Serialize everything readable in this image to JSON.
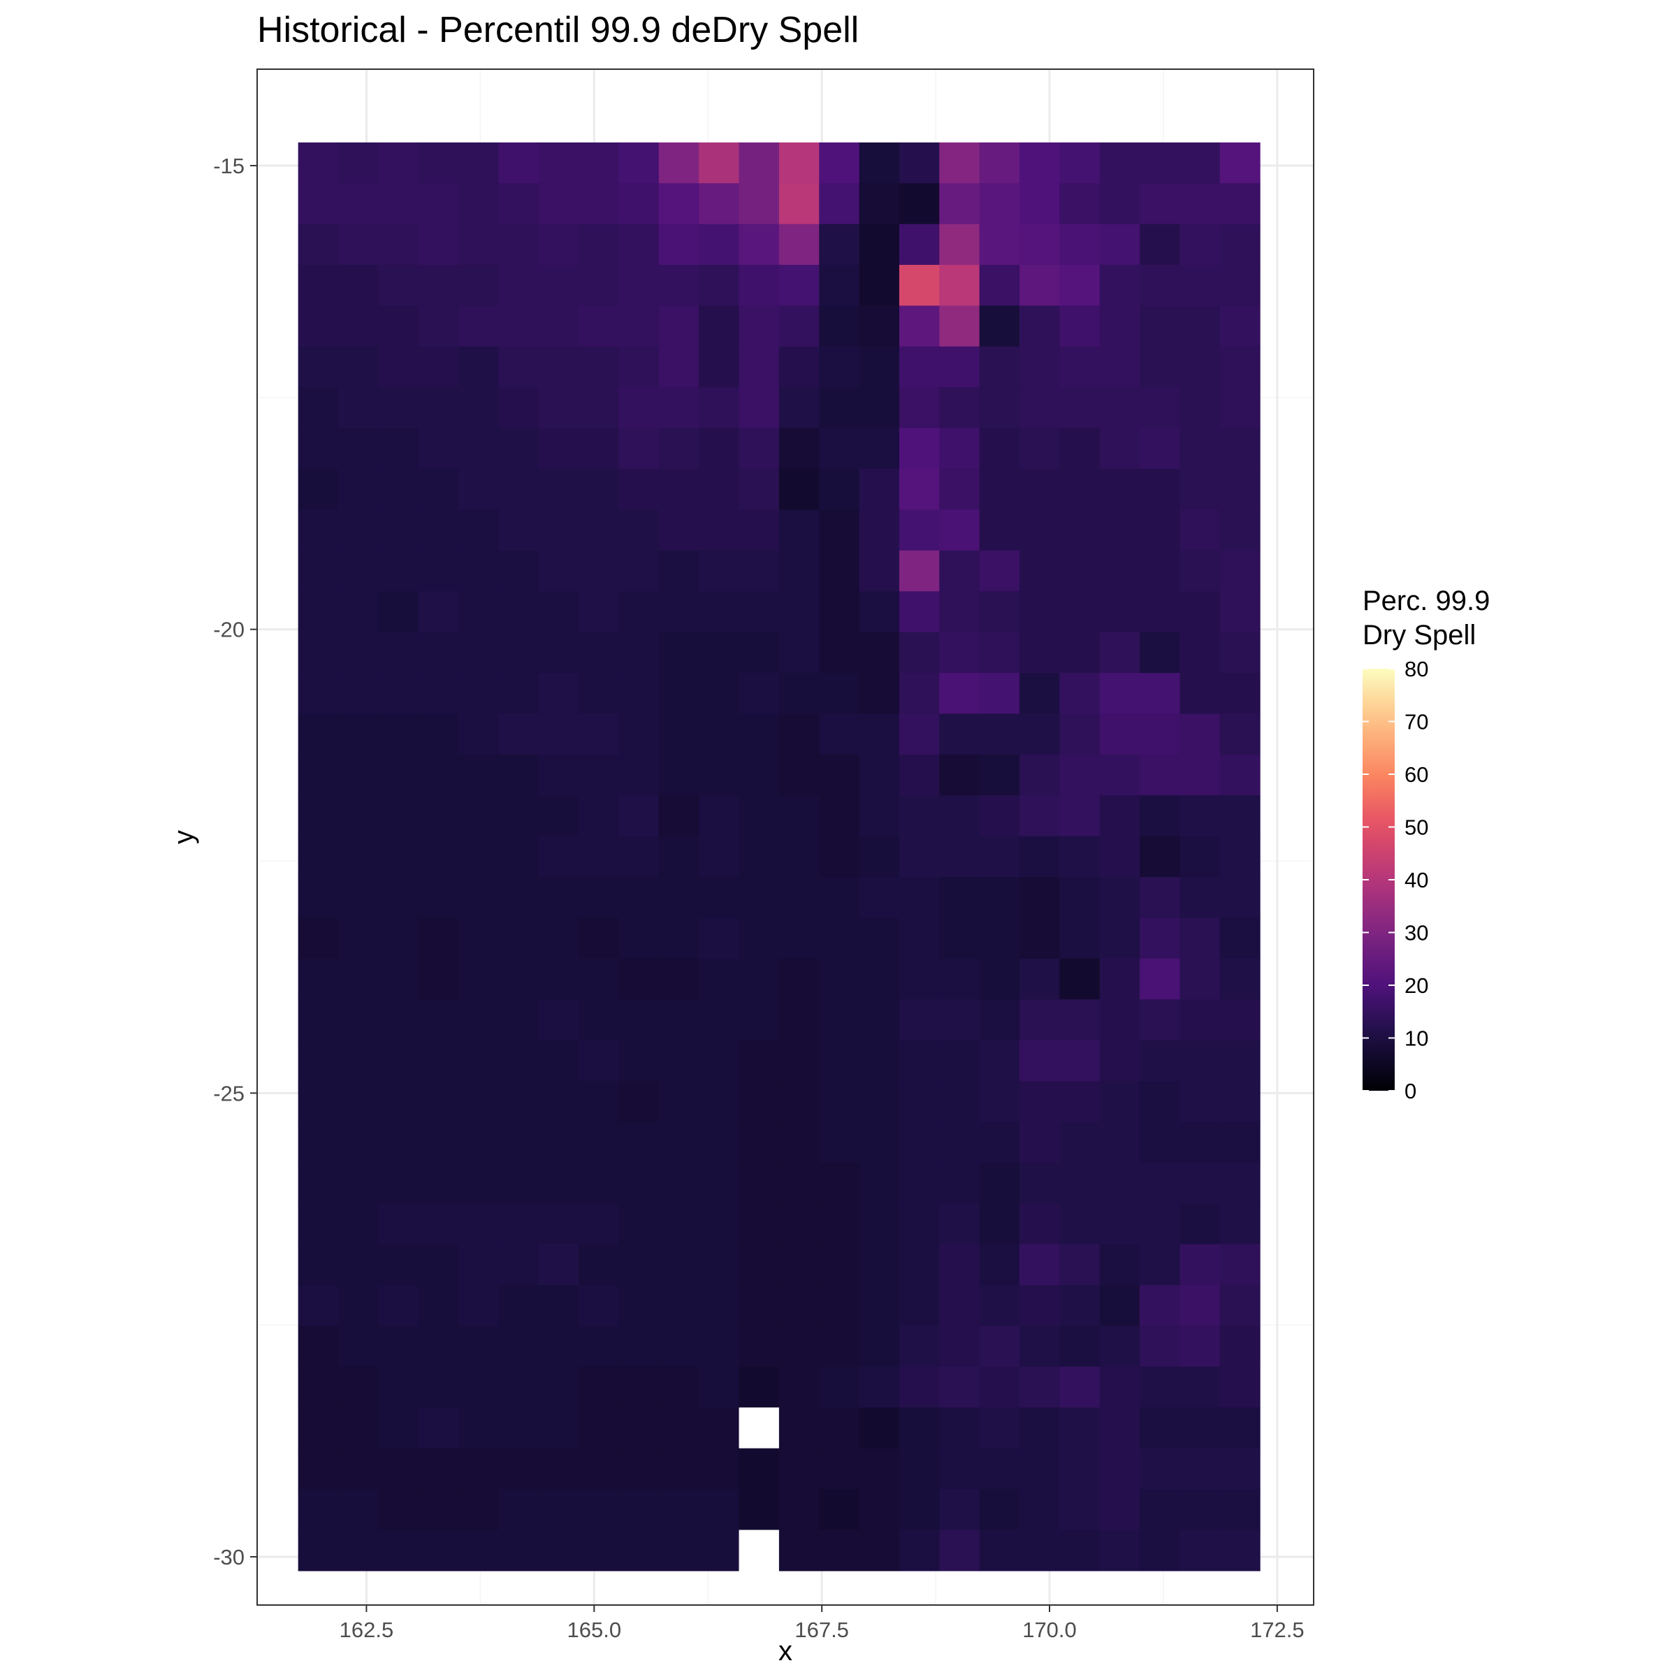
{
  "chart_data": {
    "type": "heatmap",
    "title": "Historical - Percentil 99.9 deDry Spell",
    "xlabel": "x",
    "ylabel": "y",
    "x_ticks": [
      162.5,
      165.0,
      167.5,
      170.0,
      172.5
    ],
    "x_tick_labels": [
      "162.5",
      "165.0",
      "167.5",
      "170.0",
      "172.5"
    ],
    "y_ticks": [
      -15,
      -20,
      -25,
      -30
    ],
    "y_tick_labels": [
      "-15",
      "-20",
      "-25",
      "-30"
    ],
    "xlim": [
      161.3,
      172.9
    ],
    "ylim": [
      -30.52,
      -13.96
    ],
    "x_centers": [
      161.97,
      162.41,
      162.85,
      163.29,
      163.73,
      164.17,
      164.61,
      165.05,
      165.49,
      165.93,
      166.37,
      166.81,
      167.25,
      167.69,
      168.13,
      168.57,
      169.01,
      169.45,
      169.89,
      170.33,
      170.77,
      171.21,
      171.65,
      172.09
    ],
    "y_centers": [
      -14.97,
      -15.41,
      -15.85,
      -16.29,
      -16.73,
      -17.17,
      -17.61,
      -18.05,
      -18.49,
      -18.93,
      -19.37,
      -19.81,
      -20.25,
      -20.69,
      -21.13,
      -21.57,
      -22.01,
      -22.45,
      -22.89,
      -23.33,
      -23.77,
      -24.21,
      -24.65,
      -25.09,
      -25.53,
      -25.97,
      -26.41,
      -26.85,
      -27.29,
      -27.73,
      -28.17,
      -28.61,
      -29.05,
      -29.49,
      -29.93
    ],
    "values": [
      [
        15,
        14,
        15,
        14,
        14,
        17,
        16,
        16,
        18,
        30,
        38,
        28,
        40,
        20,
        9,
        12,
        31,
        25,
        20,
        18,
        15,
        15,
        15,
        21
      ],
      [
        15,
        15,
        15,
        15,
        14,
        15,
        16,
        16,
        17,
        21,
        25,
        28,
        41,
        18,
        8,
        7,
        25,
        22,
        20,
        16,
        15,
        16,
        16,
        16
      ],
      [
        13,
        14,
        14,
        15,
        14,
        14,
        15,
        14,
        15,
        19,
        18,
        22,
        30,
        11,
        7,
        17,
        33,
        22,
        21,
        19,
        18,
        12,
        15,
        14
      ],
      [
        12,
        12,
        13,
        13,
        13,
        14,
        14,
        14,
        15,
        15,
        14,
        17,
        18,
        10,
        7,
        47,
        41,
        16,
        23,
        21,
        15,
        14,
        14,
        14
      ],
      [
        12,
        12,
        12,
        13,
        14,
        14,
        14,
        15,
        15,
        16,
        12,
        16,
        15,
        9,
        8,
        23,
        33,
        9,
        14,
        17,
        15,
        13,
        13,
        15
      ],
      [
        11,
        11,
        12,
        12,
        11,
        13,
        13,
        13,
        14,
        16,
        12,
        16,
        12,
        10,
        9,
        17,
        17,
        13,
        14,
        15,
        15,
        13,
        13,
        14
      ],
      [
        10,
        11,
        11,
        11,
        11,
        12,
        13,
        13,
        15,
        15,
        14,
        16,
        11,
        9,
        9,
        16,
        14,
        13,
        14,
        14,
        14,
        14,
        13,
        14
      ],
      [
        10,
        10,
        10,
        11,
        11,
        11,
        12,
        12,
        14,
        13,
        12,
        14,
        8,
        10,
        10,
        20,
        17,
        12,
        13,
        12,
        14,
        15,
        13,
        13
      ],
      [
        9,
        10,
        10,
        10,
        11,
        11,
        11,
        11,
        12,
        12,
        12,
        13,
        7,
        9,
        12,
        21,
        16,
        12,
        12,
        12,
        12,
        12,
        13,
        13
      ],
      [
        10,
        10,
        10,
        10,
        10,
        11,
        11,
        11,
        11,
        12,
        12,
        12,
        10,
        8,
        12,
        18,
        19,
        12,
        12,
        12,
        12,
        12,
        14,
        13
      ],
      [
        10,
        10,
        10,
        10,
        10,
        10,
        11,
        11,
        11,
        10,
        11,
        11,
        10,
        8,
        12,
        30,
        14,
        16,
        12,
        12,
        12,
        12,
        13,
        14
      ],
      [
        10,
        10,
        9,
        11,
        10,
        10,
        10,
        11,
        10,
        10,
        10,
        10,
        10,
        8,
        10,
        17,
        14,
        13,
        12,
        12,
        12,
        12,
        12,
        14
      ],
      [
        10,
        10,
        10,
        10,
        10,
        10,
        10,
        10,
        10,
        9,
        9,
        9,
        10,
        8,
        8,
        13,
        15,
        14,
        12,
        12,
        14,
        10,
        12,
        13
      ],
      [
        10,
        10,
        10,
        10,
        10,
        10,
        11,
        10,
        10,
        9,
        9,
        10,
        9,
        9,
        8,
        14,
        19,
        18,
        10,
        15,
        18,
        18,
        12,
        12
      ],
      [
        9,
        9,
        9,
        9,
        10,
        11,
        11,
        11,
        10,
        9,
        9,
        9,
        8,
        10,
        10,
        15,
        11,
        11,
        11,
        14,
        17,
        17,
        16,
        13
      ],
      [
        9,
        9,
        9,
        9,
        9,
        9,
        10,
        10,
        10,
        9,
        9,
        9,
        8,
        8,
        10,
        12,
        8,
        9,
        13,
        15,
        15,
        16,
        16,
        15
      ],
      [
        9,
        9,
        9,
        9,
        9,
        9,
        9,
        10,
        11,
        8,
        10,
        9,
        9,
        8,
        10,
        11,
        11,
        12,
        14,
        15,
        12,
        10,
        11,
        11
      ],
      [
        9,
        9,
        9,
        9,
        9,
        9,
        10,
        10,
        10,
        9,
        10,
        9,
        9,
        8,
        9,
        11,
        11,
        11,
        10,
        11,
        12,
        8,
        10,
        11
      ],
      [
        9,
        9,
        9,
        9,
        9,
        9,
        9,
        9,
        9,
        9,
        9,
        9,
        9,
        9,
        10,
        10,
        9,
        9,
        8,
        10,
        11,
        13,
        11,
        11
      ],
      [
        8,
        9,
        9,
        8,
        9,
        9,
        9,
        8,
        9,
        9,
        10,
        9,
        9,
        9,
        9,
        10,
        9,
        9,
        8,
        10,
        11,
        15,
        13,
        10
      ],
      [
        9,
        9,
        9,
        8,
        9,
        9,
        9,
        9,
        8,
        8,
        9,
        9,
        8,
        9,
        9,
        10,
        10,
        9,
        11,
        7,
        12,
        19,
        13,
        11
      ],
      [
        9,
        9,
        9,
        9,
        9,
        9,
        10,
        9,
        9,
        9,
        9,
        9,
        8,
        9,
        9,
        11,
        11,
        10,
        13,
        13,
        12,
        13,
        12,
        12
      ],
      [
        9,
        9,
        9,
        9,
        9,
        9,
        9,
        10,
        9,
        9,
        9,
        8,
        8,
        9,
        9,
        10,
        10,
        11,
        15,
        15,
        12,
        11,
        11,
        11
      ],
      [
        9,
        9,
        9,
        9,
        9,
        9,
        9,
        9,
        8,
        9,
        9,
        8,
        8,
        9,
        9,
        10,
        10,
        11,
        12,
        12,
        11,
        10,
        11,
        11
      ],
      [
        9,
        9,
        9,
        9,
        9,
        9,
        9,
        9,
        9,
        9,
        9,
        8,
        8,
        9,
        9,
        10,
        10,
        10,
        12,
        11,
        11,
        10,
        10,
        10
      ],
      [
        9,
        9,
        9,
        9,
        9,
        9,
        9,
        9,
        9,
        9,
        9,
        8,
        8,
        8,
        9,
        10,
        10,
        9,
        11,
        11,
        11,
        11,
        11,
        11
      ],
      [
        9,
        9,
        10,
        10,
        10,
        10,
        10,
        10,
        9,
        9,
        9,
        8,
        8,
        8,
        9,
        10,
        11,
        9,
        12,
        11,
        11,
        11,
        10,
        11
      ],
      [
        9,
        9,
        9,
        9,
        10,
        10,
        11,
        9,
        9,
        9,
        9,
        8,
        8,
        8,
        9,
        10,
        12,
        10,
        15,
        13,
        10,
        11,
        15,
        14
      ],
      [
        10,
        9,
        10,
        9,
        10,
        9,
        9,
        10,
        9,
        9,
        9,
        8,
        8,
        8,
        9,
        10,
        12,
        11,
        12,
        11,
        9,
        15,
        16,
        13
      ],
      [
        8,
        9,
        9,
        9,
        9,
        9,
        9,
        9,
        9,
        9,
        9,
        8,
        8,
        8,
        9,
        11,
        12,
        13,
        11,
        10,
        11,
        14,
        15,
        12
      ],
      [
        8,
        8,
        9,
        9,
        9,
        9,
        9,
        8,
        8,
        8,
        9,
        7,
        8,
        9,
        10,
        12,
        13,
        12,
        13,
        15,
        12,
        11,
        11,
        12
      ],
      [
        8,
        8,
        9,
        10,
        9,
        9,
        9,
        8,
        8,
        8,
        8,
        null,
        8,
        8,
        7,
        9,
        10,
        11,
        10,
        11,
        12,
        10,
        10,
        10
      ],
      [
        8,
        8,
        8,
        8,
        8,
        8,
        8,
        8,
        8,
        8,
        8,
        7,
        8,
        8,
        8,
        9,
        10,
        10,
        10,
        11,
        12,
        11,
        11,
        11
      ],
      [
        9,
        9,
        8,
        8,
        8,
        9,
        9,
        9,
        9,
        9,
        9,
        7,
        8,
        7,
        8,
        9,
        11,
        9,
        10,
        11,
        12,
        10,
        10,
        10
      ],
      [
        9,
        9,
        9,
        9,
        9,
        9,
        9,
        9,
        9,
        9,
        9,
        null,
        8,
        8,
        8,
        10,
        13,
        10,
        10,
        10,
        11,
        10,
        11,
        11
      ]
    ],
    "colorbar": {
      "title_line1": "Perc. 99.9",
      "title_line2": "Dry Spell",
      "min": 0,
      "max": 80,
      "ticks": [
        0,
        10,
        20,
        30,
        40,
        50,
        60,
        70,
        80
      ],
      "tick_labels": [
        "0",
        "10",
        "20",
        "30",
        "40",
        "50",
        "60",
        "70",
        "80"
      ],
      "placement": "right"
    },
    "grid": true,
    "missing_color": "#ffffff",
    "colors": {
      "panel_border": "#333333",
      "grid_major": "#ebebeb",
      "grid_minor": "#f5f5f5",
      "tick": "#333333"
    }
  }
}
